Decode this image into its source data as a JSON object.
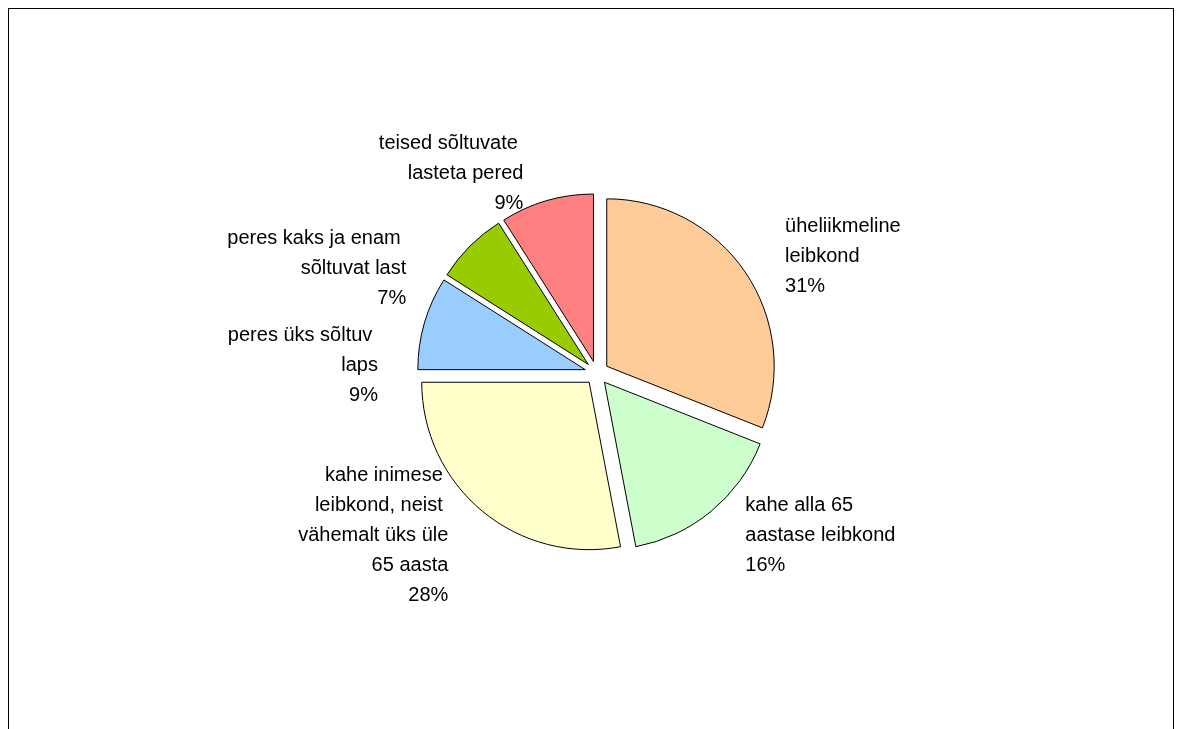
{
  "chart_data": {
    "type": "pie",
    "categories": [
      "üheliikmeline leibkond",
      "kahe alla 65 aastase leibkond",
      "kahe inimese leibkond, neist vähemalt üks üle 65 aasta",
      "peres üks sõltuv laps",
      "peres kaks ja enam sõltuvat last",
      "teised sõltuvate lasteta pered"
    ],
    "values": [
      31,
      16,
      28,
      9,
      7,
      9
    ],
    "colors": [
      "#ffcc99",
      "#ccffcc",
      "#ffffcc",
      "#99ccff",
      "#99cc00",
      "#ff8080"
    ],
    "value_labels": [
      "31%",
      "16%",
      "28%",
      "9%",
      "7%",
      "9%"
    ],
    "legend": false
  }
}
